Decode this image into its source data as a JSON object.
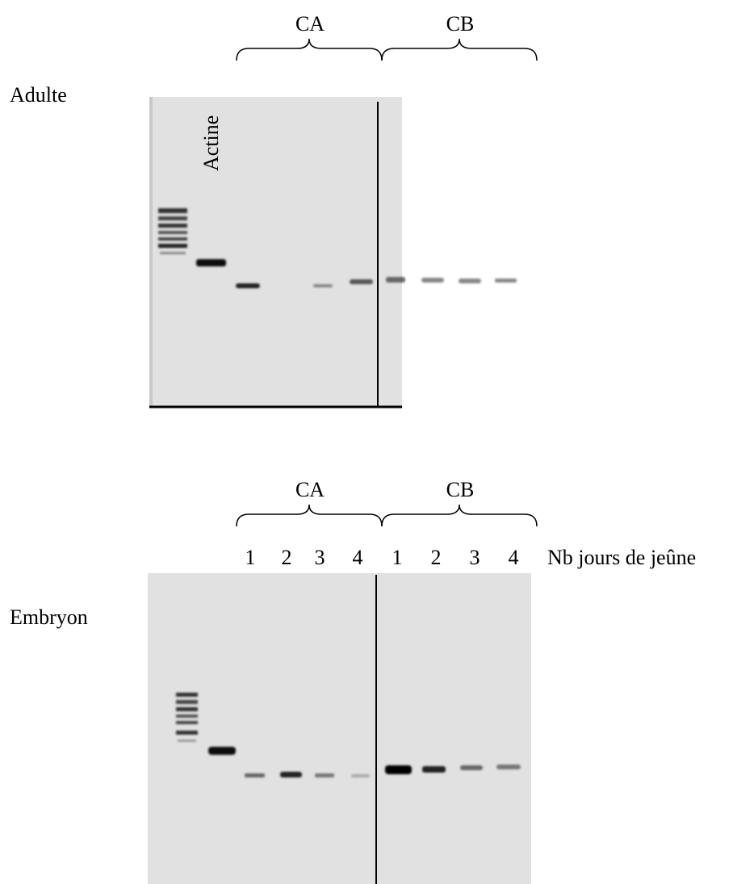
{
  "adulte": {
    "row_label": "Adulte",
    "lane_label": "Actine",
    "groups": [
      "CA",
      "CB"
    ]
  },
  "embryon": {
    "row_label": "Embryon",
    "groups": [
      "CA",
      "CB"
    ],
    "lanes": [
      "1",
      "2",
      "3",
      "4",
      "1",
      "2",
      "3",
      "4"
    ],
    "lanes_caption": "Nb jours de jeûne"
  }
}
